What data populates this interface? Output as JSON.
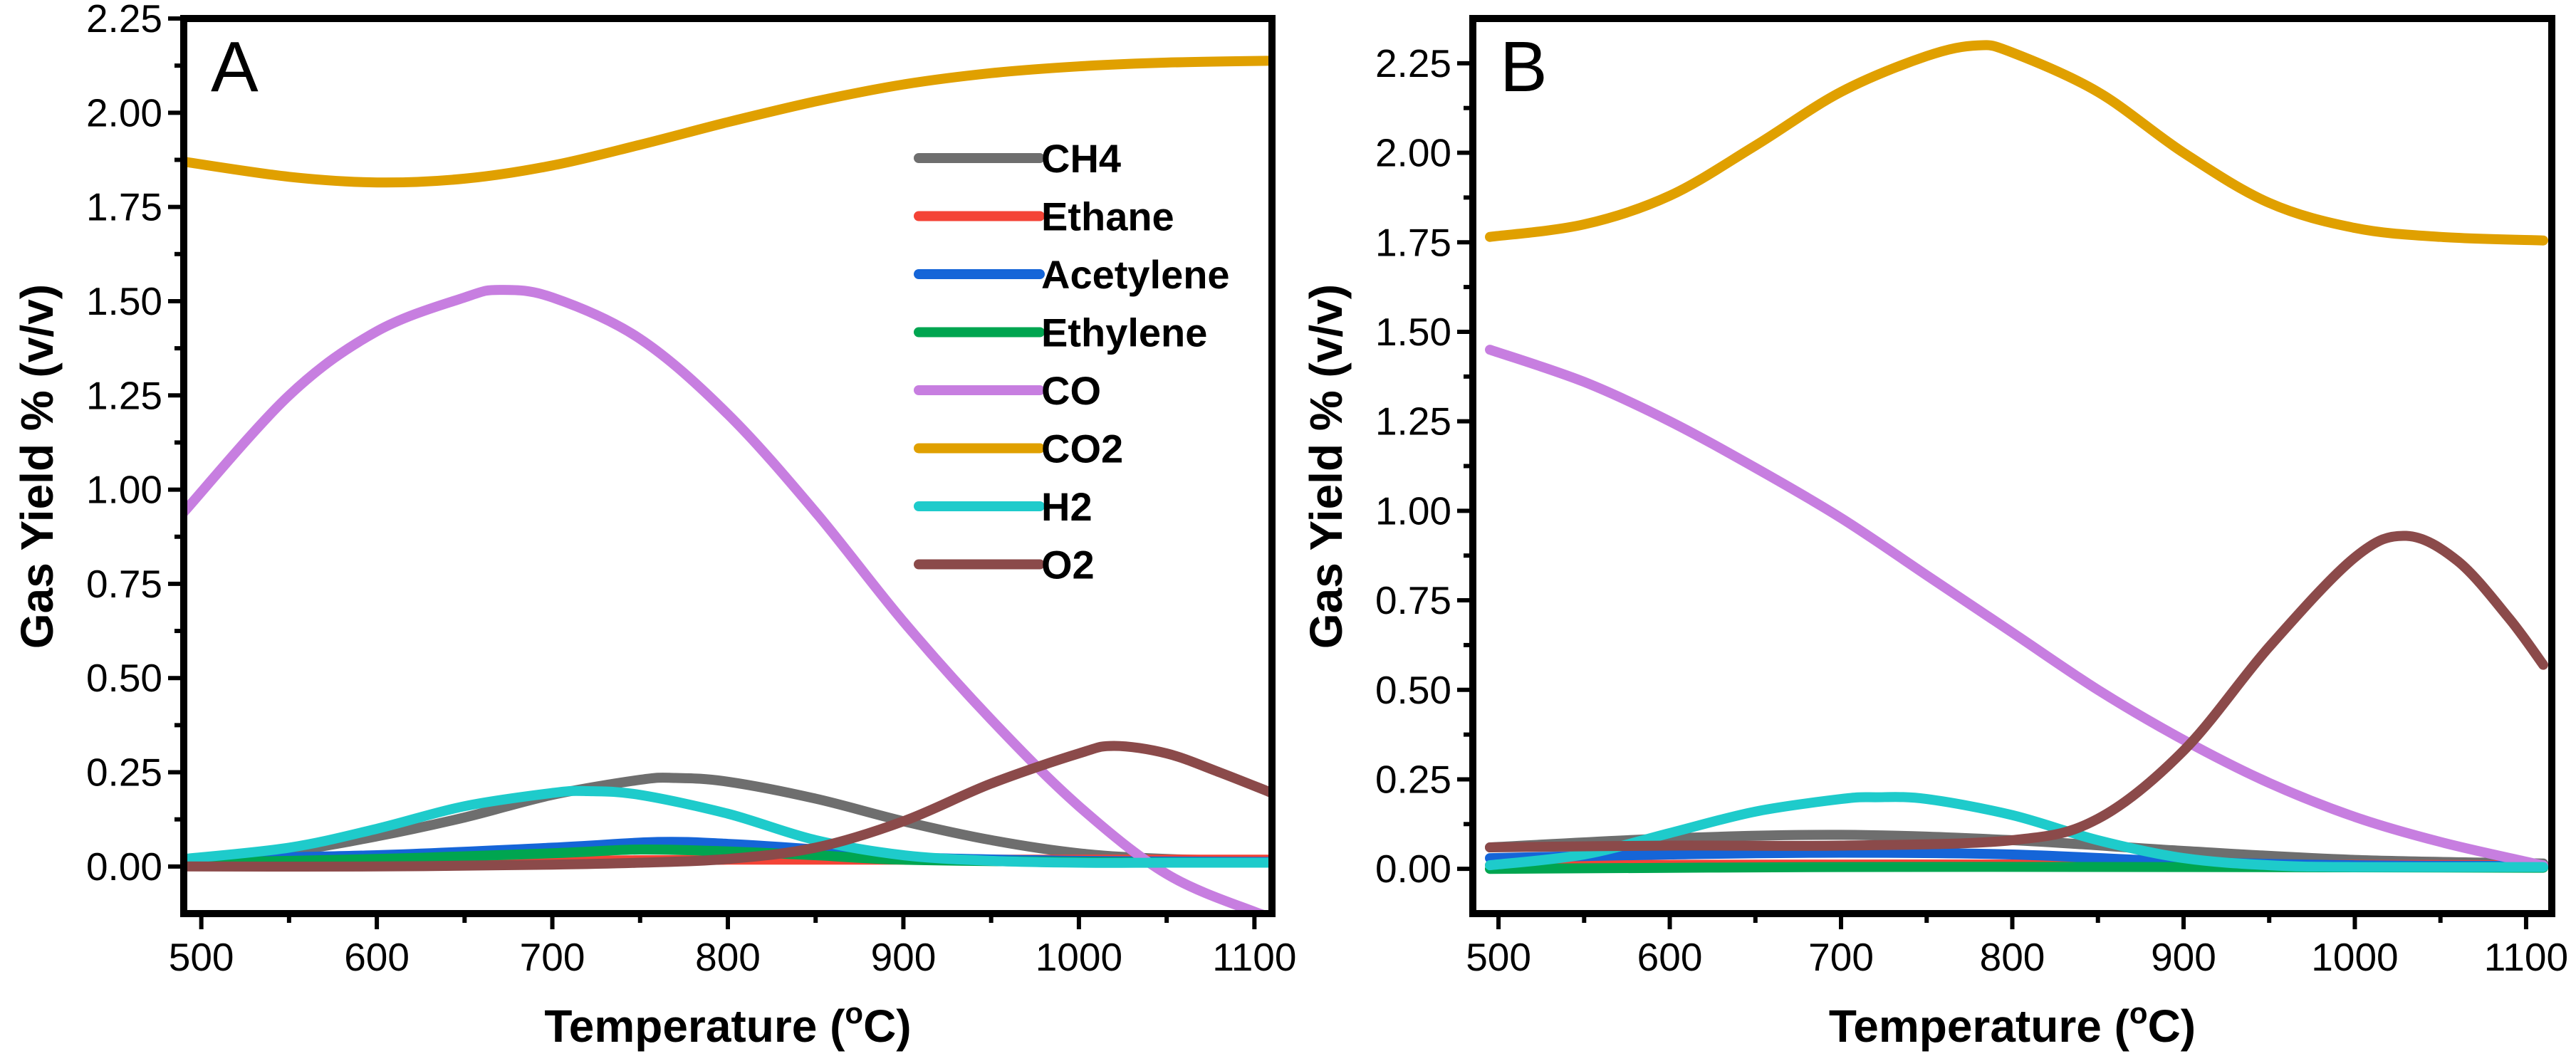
{
  "figure": {
    "panel_count": 2
  },
  "chart_data": [
    {
      "type": "line",
      "panel_label": "A",
      "xlabel": "Temperature (",
      "xlabel_sup": "o",
      "xlabel_suffix": "C)",
      "ylabel": "Gas Yield % (v/v)",
      "xlim": [
        490,
        1110
      ],
      "ylim": [
        -0.125,
        2.25
      ],
      "xticks": [
        500,
        600,
        700,
        800,
        900,
        1000,
        1100
      ],
      "yticks": [
        0.0,
        0.25,
        0.5,
        0.75,
        1.0,
        1.25,
        1.5,
        1.75,
        2.0,
        2.25
      ],
      "ytick_labels": [
        "0.00",
        "0.25",
        "0.50",
        "0.75",
        "1.00",
        "1.25",
        "1.50",
        "1.75",
        "2.00",
        "2.25"
      ],
      "legend_position": "top-right",
      "series": [
        {
          "name": "CH4",
          "color": "#6e6e6e",
          "x": [
            490,
            550,
            600,
            650,
            700,
            750,
            770,
            800,
            850,
            900,
            950,
            1000,
            1050,
            1110
          ],
          "y": [
            0.01,
            0.04,
            0.08,
            0.13,
            0.19,
            0.23,
            0.235,
            0.225,
            0.18,
            0.12,
            0.07,
            0.035,
            0.02,
            0.015
          ]
        },
        {
          "name": "Ethane",
          "color": "#f44336",
          "x": [
            490,
            600,
            700,
            800,
            900,
            1000,
            1110
          ],
          "y": [
            0.01,
            0.012,
            0.015,
            0.018,
            0.018,
            0.018,
            0.018
          ]
        },
        {
          "name": "Acetylene",
          "color": "#1565d8",
          "x": [
            490,
            600,
            700,
            760,
            800,
            850,
            900,
            1000,
            1110
          ],
          "y": [
            0.02,
            0.03,
            0.05,
            0.065,
            0.06,
            0.045,
            0.025,
            0.015,
            0.012
          ]
        },
        {
          "name": "Ethylene",
          "color": "#00a550",
          "x": [
            490,
            600,
            700,
            750,
            800,
            850,
            900,
            1000,
            1110
          ],
          "y": [
            0.01,
            0.02,
            0.035,
            0.045,
            0.04,
            0.03,
            0.018,
            0.012,
            0.01
          ]
        },
        {
          "name": "CO",
          "color": "#c77ee0",
          "x": [
            490,
            550,
            600,
            650,
            670,
            700,
            750,
            800,
            850,
            900,
            950,
            1000,
            1050,
            1100,
            1110
          ],
          "y": [
            0.94,
            1.25,
            1.42,
            1.51,
            1.53,
            1.51,
            1.4,
            1.2,
            0.94,
            0.65,
            0.39,
            0.16,
            -0.02,
            -0.12,
            -0.13
          ]
        },
        {
          "name": "CO2",
          "color": "#e0a000",
          "x": [
            490,
            550,
            600,
            650,
            700,
            750,
            800,
            850,
            900,
            950,
            1000,
            1050,
            1110
          ],
          "y": [
            1.87,
            1.83,
            1.815,
            1.825,
            1.86,
            1.915,
            1.975,
            2.03,
            2.075,
            2.105,
            2.123,
            2.133,
            2.138
          ]
        },
        {
          "name": "H2",
          "color": "#1ecbcb",
          "x": [
            490,
            550,
            600,
            650,
            700,
            720,
            750,
            800,
            850,
            900,
            950,
            1000,
            1050,
            1110
          ],
          "y": [
            0.02,
            0.05,
            0.1,
            0.16,
            0.195,
            0.2,
            0.19,
            0.14,
            0.07,
            0.03,
            0.015,
            0.01,
            0.01,
            0.01
          ]
        },
        {
          "name": "O2",
          "color": "#8b4a4a",
          "x": [
            490,
            600,
            700,
            750,
            800,
            850,
            900,
            950,
            1000,
            1020,
            1050,
            1080,
            1110
          ],
          "y": [
            0.0,
            0.0,
            0.005,
            0.01,
            0.02,
            0.05,
            0.12,
            0.22,
            0.3,
            0.32,
            0.3,
            0.25,
            0.195
          ]
        }
      ]
    },
    {
      "type": "line",
      "panel_label": "B",
      "xlabel": "Temperature (",
      "xlabel_sup": "o",
      "xlabel_suffix": "C)",
      "ylabel": "Gas Yield % (v/v)",
      "xlim": [
        485,
        1115
      ],
      "ylim": [
        -0.125,
        2.375
      ],
      "xticks": [
        500,
        600,
        700,
        800,
        900,
        1000,
        1100
      ],
      "yticks": [
        0.0,
        0.25,
        0.5,
        0.75,
        1.0,
        1.25,
        1.5,
        1.75,
        2.0,
        2.25
      ],
      "ytick_labels": [
        "0.00",
        "0.25",
        "0.50",
        "0.75",
        "1.00",
        "1.25",
        "1.50",
        "1.75",
        "2.00",
        "2.25"
      ],
      "series": [
        {
          "name": "CH4",
          "color": "#6e6e6e",
          "x": [
            495,
            600,
            700,
            800,
            900,
            1000,
            1110
          ],
          "y": [
            0.06,
            0.085,
            0.095,
            0.08,
            0.05,
            0.025,
            0.015
          ]
        },
        {
          "name": "Ethane",
          "color": "#f44336",
          "x": [
            495,
            700,
            900,
            1110
          ],
          "y": [
            0.01,
            0.012,
            0.012,
            0.01
          ]
        },
        {
          "name": "Acetylene",
          "color": "#1565d8",
          "x": [
            495,
            600,
            700,
            800,
            900,
            1000,
            1110
          ],
          "y": [
            0.03,
            0.04,
            0.045,
            0.04,
            0.02,
            0.01,
            0.008
          ]
        },
        {
          "name": "Ethylene",
          "color": "#00a550",
          "x": [
            495,
            700,
            900,
            1110
          ],
          "y": [
            0.0,
            0.005,
            0.005,
            0.003
          ]
        },
        {
          "name": "CO",
          "color": "#c77ee0",
          "x": [
            495,
            550,
            600,
            650,
            700,
            750,
            800,
            850,
            900,
            950,
            1000,
            1050,
            1100,
            1110
          ],
          "y": [
            1.45,
            1.36,
            1.25,
            1.12,
            0.98,
            0.82,
            0.66,
            0.5,
            0.36,
            0.24,
            0.145,
            0.075,
            0.02,
            0.01
          ]
        },
        {
          "name": "CO2",
          "color": "#e0a000",
          "x": [
            495,
            550,
            600,
            650,
            700,
            750,
            780,
            800,
            850,
            900,
            950,
            1000,
            1050,
            1110
          ],
          "y": [
            1.765,
            1.8,
            1.88,
            2.02,
            2.17,
            2.27,
            2.3,
            2.28,
            2.17,
            2.0,
            1.86,
            1.79,
            1.765,
            1.755
          ]
        },
        {
          "name": "H2",
          "color": "#1ecbcb",
          "x": [
            495,
            550,
            600,
            650,
            700,
            720,
            750,
            800,
            850,
            900,
            950,
            1000,
            1110
          ],
          "y": [
            0.01,
            0.04,
            0.1,
            0.16,
            0.195,
            0.2,
            0.195,
            0.15,
            0.08,
            0.03,
            0.01,
            0.005,
            0.005
          ]
        },
        {
          "name": "O2",
          "color": "#8b4a4a",
          "x": [
            495,
            600,
            700,
            800,
            850,
            900,
            950,
            1000,
            1030,
            1060,
            1090,
            1110
          ],
          "y": [
            0.06,
            0.065,
            0.065,
            0.08,
            0.14,
            0.33,
            0.62,
            0.87,
            0.93,
            0.86,
            0.7,
            0.57
          ]
        }
      ]
    }
  ]
}
